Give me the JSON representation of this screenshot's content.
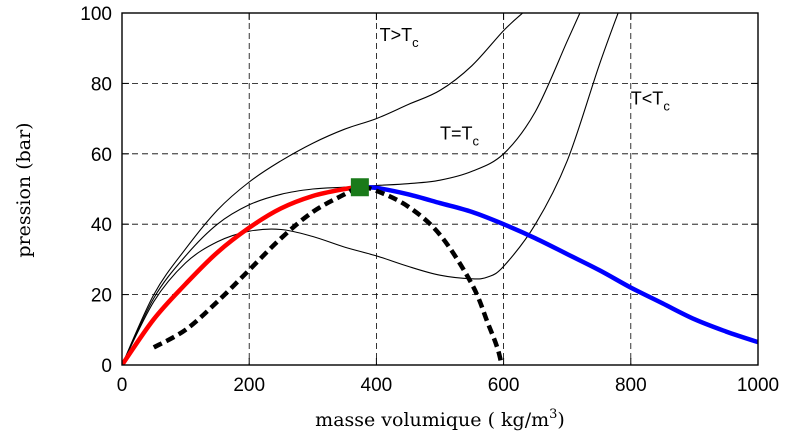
{
  "chart_data": {
    "type": "line",
    "title": "",
    "xlabel": "masse volumique ( kg/m",
    "xlabel_sup": "3",
    "xlabel_close": ")",
    "ylabel": "pression (bar)",
    "xlim": [
      0,
      1000
    ],
    "ylim": [
      0,
      100
    ],
    "xticks": [
      0,
      200,
      400,
      600,
      800,
      1000
    ],
    "yticks": [
      0,
      20,
      40,
      60,
      80,
      100
    ],
    "grid": true,
    "grid_style": "dashed",
    "annotations": [
      {
        "main": "T>T",
        "sub": "c",
        "x": 405,
        "y": 92
      },
      {
        "main": "T=T",
        "sub": "c",
        "x": 500,
        "y": 64
      },
      {
        "main": "T<T",
        "sub": "c",
        "x": 800,
        "y": 74
      }
    ],
    "series": [
      {
        "role": "isotherm-above-critical",
        "color": "#000000",
        "style": "solid-thin",
        "points": [
          [
            0,
            0
          ],
          [
            50,
            20
          ],
          [
            100,
            33
          ],
          [
            150,
            44
          ],
          [
            200,
            52
          ],
          [
            250,
            58
          ],
          [
            300,
            63
          ],
          [
            350,
            67
          ],
          [
            400,
            70
          ],
          [
            450,
            74
          ],
          [
            500,
            78
          ],
          [
            550,
            85
          ],
          [
            600,
            95
          ],
          [
            630,
            100
          ]
        ]
      },
      {
        "role": "isotherm-critical",
        "color": "#000000",
        "style": "solid-thin",
        "points": [
          [
            0,
            0
          ],
          [
            50,
            19
          ],
          [
            100,
            31
          ],
          [
            150,
            40
          ],
          [
            200,
            45.5
          ],
          [
            250,
            48.5
          ],
          [
            300,
            50
          ],
          [
            350,
            50.5
          ],
          [
            400,
            51
          ],
          [
            450,
            51.5
          ],
          [
            500,
            52.5
          ],
          [
            550,
            55
          ],
          [
            600,
            60
          ],
          [
            650,
            72
          ],
          [
            700,
            92
          ],
          [
            720,
            100
          ]
        ]
      },
      {
        "role": "isotherm-below-critical",
        "color": "#000000",
        "style": "solid-thin",
        "points": [
          [
            0,
            0
          ],
          [
            50,
            18
          ],
          [
            100,
            29
          ],
          [
            150,
            35
          ],
          [
            200,
            38
          ],
          [
            250,
            38.5
          ],
          [
            300,
            36.5
          ],
          [
            350,
            33.5
          ],
          [
            400,
            31
          ],
          [
            450,
            28
          ],
          [
            500,
            25.5
          ],
          [
            550,
            24.5
          ],
          [
            575,
            25
          ],
          [
            600,
            28
          ],
          [
            650,
            40
          ],
          [
            700,
            58
          ],
          [
            750,
            85
          ],
          [
            780,
            100
          ]
        ]
      },
      {
        "role": "liquid-vapor-boundary-vapor-side",
        "color": "#ff0000",
        "style": "solid-thick",
        "points": [
          [
            0,
            0
          ],
          [
            50,
            13
          ],
          [
            100,
            23
          ],
          [
            150,
            32
          ],
          [
            200,
            39
          ],
          [
            250,
            44.5
          ],
          [
            300,
            48
          ],
          [
            350,
            50
          ],
          [
            374,
            50.5
          ]
        ]
      },
      {
        "role": "liquid-vapor-boundary-liquid-side",
        "color": "#0000ff",
        "style": "solid-thick",
        "points": [
          [
            374,
            50.5
          ],
          [
            400,
            50.3
          ],
          [
            450,
            48.5
          ],
          [
            500,
            46
          ],
          [
            550,
            43.5
          ],
          [
            600,
            40
          ],
          [
            650,
            36
          ],
          [
            700,
            31.5
          ],
          [
            750,
            27
          ],
          [
            800,
            22
          ],
          [
            850,
            17.5
          ],
          [
            900,
            13
          ],
          [
            950,
            9.5
          ],
          [
            1000,
            6.5
          ]
        ]
      },
      {
        "role": "spinodal",
        "color": "#000000",
        "style": "dashed-thick",
        "points": [
          [
            50,
            5
          ],
          [
            100,
            10
          ],
          [
            150,
            18
          ],
          [
            200,
            27
          ],
          [
            250,
            36
          ],
          [
            300,
            43.5
          ],
          [
            350,
            48.5
          ],
          [
            374,
            50.5
          ],
          [
            400,
            49.5
          ],
          [
            450,
            45
          ],
          [
            500,
            37
          ],
          [
            550,
            23
          ],
          [
            575,
            12
          ],
          [
            590,
            5
          ],
          [
            597,
            0
          ]
        ]
      }
    ],
    "critical_point": {
      "x": 374,
      "y": 50.5,
      "color": "#1a7a1a",
      "marker": "square"
    }
  }
}
